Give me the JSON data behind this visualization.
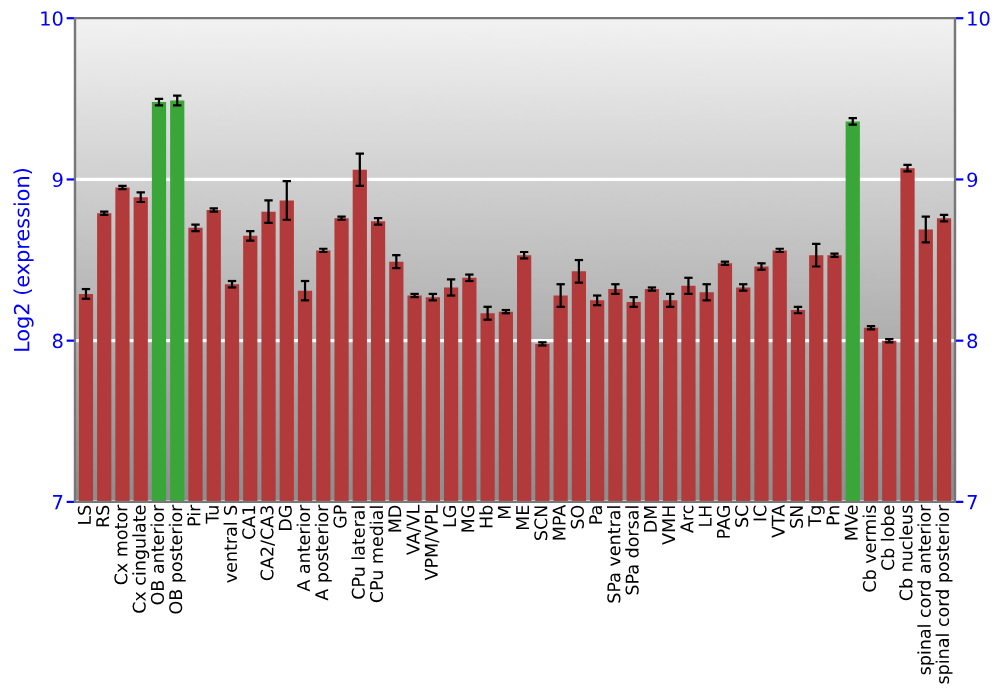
{
  "chart_data": {
    "type": "bar",
    "ylabel": "Log2 (expression)",
    "categories": [
      "LS",
      "RS",
      "Cx motor",
      "Cx cingulate",
      "OB anterior",
      "OB posterior",
      "Pir",
      "Tu",
      "ventral S",
      "CA1",
      "CA2/CA3",
      "DG",
      "A anterior",
      "A posterior",
      "GP",
      "CPu lateral",
      "CPu medial",
      "MD",
      "VA/VL",
      "VPM/VPL",
      "LG",
      "MG",
      "Hb",
      "M",
      "ME",
      "SCN",
      "MPA",
      "SO",
      "Pa",
      "SPa ventral",
      "SPa dorsal",
      "DM",
      "VMH",
      "Arc",
      "LH",
      "PAG",
      "SC",
      "IC",
      "VTA",
      "SN",
      "Tg",
      "Pn",
      "MVe",
      "Cb vermis",
      "Cb lobe",
      "Cb nucleus",
      "spinal cord anterior",
      "spinal cord posterior"
    ],
    "values": [
      8.29,
      8.79,
      8.95,
      8.89,
      9.48,
      9.49,
      8.7,
      8.81,
      8.35,
      8.65,
      8.8,
      8.87,
      8.31,
      8.56,
      8.76,
      9.06,
      8.74,
      8.49,
      8.28,
      8.27,
      8.33,
      8.39,
      8.17,
      8.18,
      8.53,
      7.98,
      8.28,
      8.43,
      8.25,
      8.32,
      8.24,
      8.32,
      8.25,
      8.34,
      8.3,
      8.48,
      8.33,
      8.46,
      8.56,
      8.19,
      8.53,
      8.53,
      9.36,
      8.08,
      8.0,
      9.07,
      8.69,
      8.76
    ],
    "errors": [
      0.03,
      0.01,
      0.01,
      0.03,
      0.02,
      0.03,
      0.02,
      0.01,
      0.02,
      0.03,
      0.07,
      0.12,
      0.06,
      0.01,
      0.01,
      0.1,
      0.02,
      0.04,
      0.01,
      0.02,
      0.05,
      0.02,
      0.04,
      0.01,
      0.02,
      0.01,
      0.07,
      0.07,
      0.03,
      0.03,
      0.03,
      0.01,
      0.04,
      0.05,
      0.05,
      0.01,
      0.02,
      0.02,
      0.01,
      0.02,
      0.07,
      0.01,
      0.02,
      0.01,
      0.01,
      0.02,
      0.08,
      0.02
    ],
    "colors": [
      "#b33a3a",
      "#b33a3a",
      "#b33a3a",
      "#b33a3a",
      "#3aa63a",
      "#3aa63a",
      "#b33a3a",
      "#b33a3a",
      "#b33a3a",
      "#b33a3a",
      "#b33a3a",
      "#b33a3a",
      "#b33a3a",
      "#b33a3a",
      "#b33a3a",
      "#b33a3a",
      "#b33a3a",
      "#b33a3a",
      "#b33a3a",
      "#b33a3a",
      "#b33a3a",
      "#b33a3a",
      "#b33a3a",
      "#b33a3a",
      "#b33a3a",
      "#b33a3a",
      "#b33a3a",
      "#b33a3a",
      "#b33a3a",
      "#b33a3a",
      "#b33a3a",
      "#b33a3a",
      "#b33a3a",
      "#b33a3a",
      "#b33a3a",
      "#b33a3a",
      "#b33a3a",
      "#b33a3a",
      "#b33a3a",
      "#b33a3a",
      "#b33a3a",
      "#b33a3a",
      "#3aa63a",
      "#b33a3a",
      "#b33a3a",
      "#b33a3a",
      "#b33a3a",
      "#b33a3a"
    ],
    "ylim": [
      7,
      10
    ],
    "yticks": [
      7,
      8,
      9,
      10
    ],
    "y2lim": [
      7,
      10
    ],
    "y2ticks": [
      7,
      8,
      9,
      10
    ],
    "grid": "y"
  }
}
